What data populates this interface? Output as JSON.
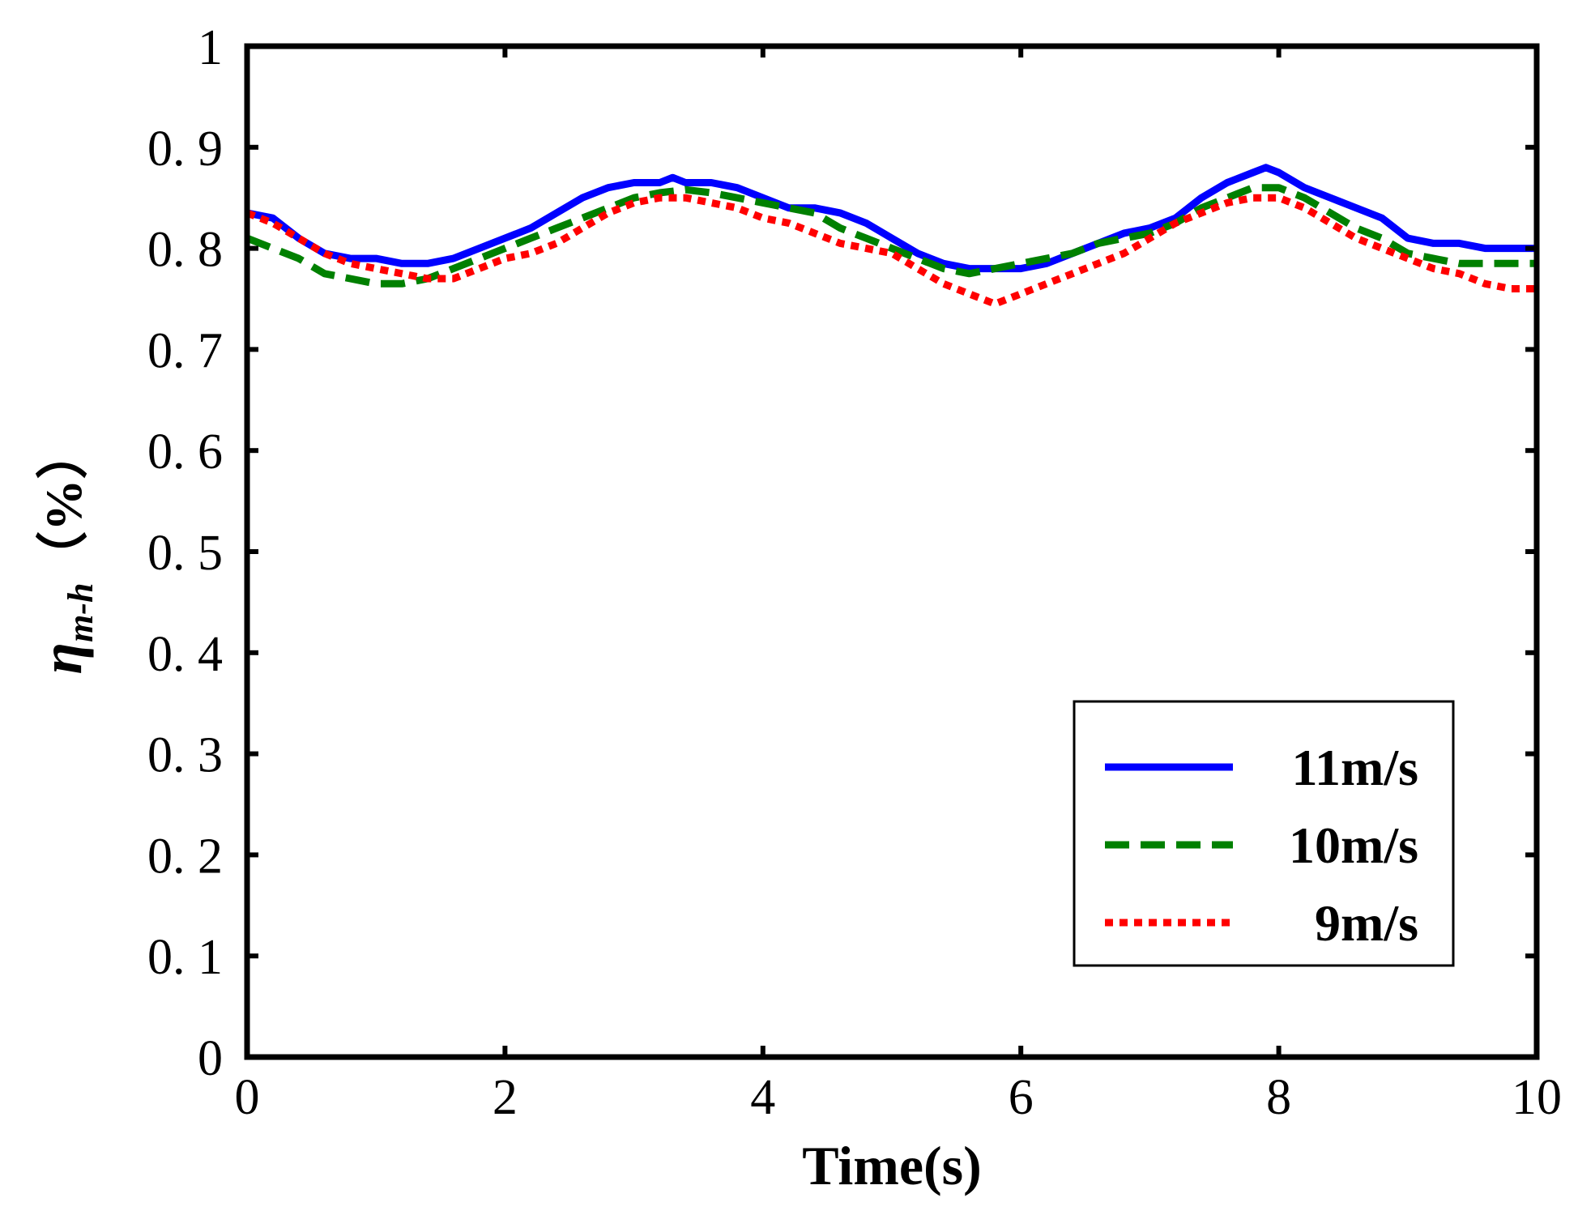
{
  "chart_data": {
    "type": "line",
    "title": "",
    "xlabel": "Time(s)",
    "ylabel": {
      "symbol": "η",
      "subscript": "m-h",
      "unit": "（%）"
    },
    "xlim": [
      0,
      10
    ],
    "ylim": [
      0,
      1
    ],
    "xticks": [
      0,
      2,
      4,
      6,
      8,
      10
    ],
    "xtick_labels": [
      "0",
      "2",
      "4",
      "6",
      "8",
      "10"
    ],
    "yticks": [
      0,
      0.1,
      0.2,
      0.3,
      0.4,
      0.5,
      0.6,
      0.7,
      0.8,
      0.9,
      1
    ],
    "ytick_labels": [
      "0",
      "0. 1",
      "0. 2",
      "0. 3",
      "0. 4",
      "0. 5",
      "0. 6",
      "0. 7",
      "0. 8",
      "0. 9",
      "1"
    ],
    "grid": false,
    "legend_position": "bottom-right",
    "series": [
      {
        "name": "11m/s",
        "color": "#0000ff",
        "dash": "solid",
        "x": [
          0,
          0.2,
          0.4,
          0.6,
          0.8,
          1.0,
          1.2,
          1.4,
          1.6,
          1.8,
          2.0,
          2.2,
          2.4,
          2.6,
          2.8,
          3.0,
          3.2,
          3.3,
          3.4,
          3.6,
          3.8,
          4.0,
          4.2,
          4.4,
          4.6,
          4.8,
          5.0,
          5.2,
          5.4,
          5.6,
          5.8,
          6.0,
          6.2,
          6.4,
          6.6,
          6.8,
          7.0,
          7.2,
          7.4,
          7.6,
          7.8,
          7.9,
          8.0,
          8.2,
          8.4,
          8.6,
          8.8,
          9.0,
          9.2,
          9.4,
          9.6,
          9.8,
          10.0
        ],
        "y": [
          0.835,
          0.83,
          0.81,
          0.795,
          0.79,
          0.79,
          0.785,
          0.785,
          0.79,
          0.8,
          0.81,
          0.82,
          0.835,
          0.85,
          0.86,
          0.865,
          0.865,
          0.87,
          0.865,
          0.865,
          0.86,
          0.85,
          0.84,
          0.84,
          0.835,
          0.825,
          0.81,
          0.795,
          0.785,
          0.78,
          0.78,
          0.78,
          0.785,
          0.795,
          0.805,
          0.815,
          0.82,
          0.83,
          0.85,
          0.865,
          0.875,
          0.88,
          0.875,
          0.86,
          0.85,
          0.84,
          0.83,
          0.81,
          0.805,
          0.805,
          0.8,
          0.8,
          0.8
        ]
      },
      {
        "name": "10m/s",
        "color": "#008000",
        "dash": "dashed",
        "x": [
          0,
          0.2,
          0.4,
          0.6,
          0.8,
          1.0,
          1.2,
          1.4,
          1.6,
          1.8,
          2.0,
          2.2,
          2.4,
          2.6,
          2.8,
          3.0,
          3.2,
          3.4,
          3.6,
          3.8,
          4.0,
          4.2,
          4.4,
          4.6,
          4.8,
          5.0,
          5.2,
          5.4,
          5.6,
          5.8,
          6.0,
          6.2,
          6.4,
          6.6,
          6.8,
          7.0,
          7.2,
          7.4,
          7.6,
          7.8,
          8.0,
          8.2,
          8.4,
          8.6,
          8.8,
          9.0,
          9.2,
          9.4,
          9.6,
          9.8,
          10.0
        ],
        "y": [
          0.81,
          0.8,
          0.79,
          0.775,
          0.77,
          0.765,
          0.765,
          0.77,
          0.78,
          0.79,
          0.8,
          0.81,
          0.82,
          0.83,
          0.84,
          0.85,
          0.855,
          0.858,
          0.855,
          0.85,
          0.845,
          0.84,
          0.835,
          0.82,
          0.81,
          0.8,
          0.79,
          0.78,
          0.775,
          0.78,
          0.785,
          0.79,
          0.795,
          0.805,
          0.81,
          0.815,
          0.825,
          0.84,
          0.85,
          0.86,
          0.86,
          0.85,
          0.835,
          0.82,
          0.81,
          0.795,
          0.79,
          0.785,
          0.785,
          0.785,
          0.785
        ]
      },
      {
        "name": "9m/s",
        "color": "#ff0000",
        "dash": "dotted",
        "x": [
          0,
          0.2,
          0.4,
          0.6,
          0.8,
          1.0,
          1.2,
          1.4,
          1.6,
          1.8,
          2.0,
          2.2,
          2.4,
          2.6,
          2.8,
          3.0,
          3.2,
          3.4,
          3.6,
          3.8,
          4.0,
          4.2,
          4.4,
          4.6,
          4.8,
          5.0,
          5.2,
          5.4,
          5.6,
          5.8,
          6.0,
          6.2,
          6.4,
          6.6,
          6.8,
          7.0,
          7.2,
          7.4,
          7.6,
          7.8,
          8.0,
          8.2,
          8.4,
          8.6,
          8.8,
          9.0,
          9.2,
          9.4,
          9.6,
          9.8,
          10.0
        ],
        "y": [
          0.835,
          0.825,
          0.81,
          0.795,
          0.785,
          0.78,
          0.775,
          0.77,
          0.77,
          0.78,
          0.79,
          0.795,
          0.805,
          0.82,
          0.835,
          0.845,
          0.85,
          0.85,
          0.845,
          0.84,
          0.83,
          0.825,
          0.815,
          0.805,
          0.8,
          0.795,
          0.78,
          0.765,
          0.755,
          0.745,
          0.755,
          0.765,
          0.775,
          0.785,
          0.795,
          0.81,
          0.825,
          0.835,
          0.845,
          0.85,
          0.85,
          0.84,
          0.825,
          0.81,
          0.8,
          0.79,
          0.78,
          0.775,
          0.765,
          0.76,
          0.76
        ]
      }
    ]
  }
}
